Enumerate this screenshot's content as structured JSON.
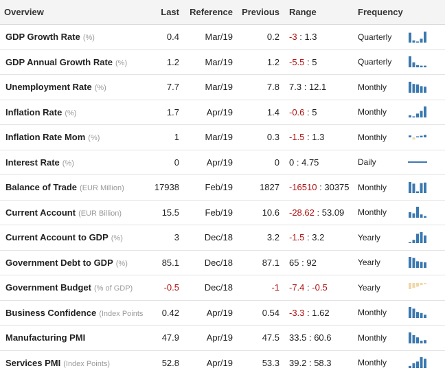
{
  "table": {
    "headers": {
      "overview": "Overview",
      "last": "Last",
      "reference": "Reference",
      "previous": "Previous",
      "range": "Range",
      "frequency": "Frequency"
    },
    "rows": [
      {
        "name": "GDP Growth Rate",
        "unit": "(%)",
        "last": "0.4",
        "last_neg": false,
        "reference": "Mar/19",
        "previous": "0.2",
        "prev_neg": false,
        "range_low": "-3",
        "low_neg": true,
        "range_sep": ":",
        "range_high": "1.3",
        "high_neg": false,
        "frequency": "Quarterly",
        "spark": {
          "color": "#3b78b0",
          "type": "bars",
          "bars": [
            0.9,
            0.2,
            0.1,
            0.35,
            1.0
          ]
        }
      },
      {
        "name": "GDP Annual Growth Rate",
        "unit": "(%)",
        "last": "1.2",
        "last_neg": false,
        "reference": "Mar/19",
        "previous": "1.2",
        "prev_neg": false,
        "range_low": "-5.5",
        "low_neg": true,
        "range_sep": ":",
        "range_high": "5",
        "high_neg": false,
        "frequency": "Quarterly",
        "spark": {
          "color": "#3b78b0",
          "type": "bars",
          "bars": [
            1.0,
            0.45,
            0.2,
            0.15,
            0.15
          ]
        }
      },
      {
        "name": "Unemployment Rate",
        "unit": "(%)",
        "last": "7.7",
        "last_neg": false,
        "reference": "Mar/19",
        "previous": "7.8",
        "prev_neg": false,
        "range_low": "7.3",
        "low_neg": false,
        "range_sep": ":",
        "range_high": "12.1",
        "high_neg": false,
        "frequency": "Monthly",
        "spark": {
          "color": "#3b78b0",
          "type": "bars",
          "bars": [
            1.0,
            0.8,
            0.75,
            0.6,
            0.55
          ]
        }
      },
      {
        "name": "Inflation Rate",
        "unit": "(%)",
        "last": "1.7",
        "last_neg": false,
        "reference": "Apr/19",
        "previous": "1.4",
        "prev_neg": false,
        "range_low": "-0.6",
        "low_neg": true,
        "range_sep": ":",
        "range_high": "5",
        "high_neg": false,
        "frequency": "Monthly",
        "spark": {
          "color": "#3b78b0",
          "type": "bars",
          "bars": [
            0.2,
            0.1,
            0.35,
            0.6,
            1.0
          ]
        }
      },
      {
        "name": "Inflation Rate Mom",
        "unit": "(%)",
        "last": "1",
        "last_neg": false,
        "reference": "Mar/19",
        "previous": "0.3",
        "prev_neg": false,
        "range_low": "-1.5",
        "low_neg": true,
        "range_sep": ":",
        "range_high": "1.3",
        "high_neg": false,
        "frequency": "Monthly",
        "spark": {
          "color": "#3b78b0",
          "type": "mixed",
          "bars": [
            0.35,
            -0.2,
            0.15,
            0.3,
            0.45
          ]
        }
      },
      {
        "name": "Interest Rate",
        "unit": "(%)",
        "last": "0",
        "last_neg": false,
        "reference": "Apr/19",
        "previous": "0",
        "prev_neg": false,
        "range_low": "0",
        "low_neg": false,
        "range_sep": ":",
        "range_high": "4.75",
        "high_neg": false,
        "frequency": "Daily",
        "spark": {
          "color": "#3b78b0",
          "type": "line",
          "bars": []
        }
      },
      {
        "name": "Balance of Trade",
        "unit": "(EUR Million)",
        "last": "17938",
        "last_neg": false,
        "reference": "Feb/19",
        "previous": "1827",
        "prev_neg": false,
        "range_low": "-16510",
        "low_neg": true,
        "range_sep": ":",
        "range_high": "30375",
        "high_neg": false,
        "frequency": "Monthly",
        "spark": {
          "color": "#3b78b0",
          "type": "bars",
          "bars": [
            1.0,
            0.85,
            0.15,
            0.9,
            0.95
          ]
        }
      },
      {
        "name": "Current Account",
        "unit": "(EUR Billion)",
        "last": "15.5",
        "last_neg": false,
        "reference": "Feb/19",
        "previous": "10.6",
        "prev_neg": false,
        "range_low": "-28.62",
        "low_neg": true,
        "range_sep": ":",
        "range_high": "53.09",
        "high_neg": false,
        "frequency": "Monthly",
        "spark": {
          "color": "#3b78b0",
          "type": "bars",
          "bars": [
            0.5,
            0.4,
            1.0,
            0.3,
            0.15
          ]
        }
      },
      {
        "name": "Current Account to GDP",
        "unit": "(%)",
        "last": "3",
        "last_neg": false,
        "reference": "Dec/18",
        "previous": "3.2",
        "prev_neg": false,
        "range_low": "-1.5",
        "low_neg": true,
        "range_sep": ":",
        "range_high": "3.2",
        "high_neg": false,
        "frequency": "Yearly",
        "spark": {
          "color": "#3b78b0",
          "type": "bars",
          "bars": [
            0.1,
            0.3,
            0.85,
            1.0,
            0.7
          ]
        }
      },
      {
        "name": "Government Debt to GDP",
        "unit": "(%)",
        "last": "85.1",
        "last_neg": false,
        "reference": "Dec/18",
        "previous": "87.1",
        "prev_neg": false,
        "range_low": "65",
        "low_neg": false,
        "range_sep": ":",
        "range_high": "92",
        "high_neg": false,
        "frequency": "Yearly",
        "spark": {
          "color": "#3b78b0",
          "type": "bars",
          "bars": [
            1.0,
            0.9,
            0.6,
            0.55,
            0.5
          ]
        }
      },
      {
        "name": "Government Budget",
        "unit": "(% of GDP)",
        "last": "-0.5",
        "last_neg": true,
        "reference": "Dec/18",
        "previous": "-1",
        "prev_neg": true,
        "range_low": "-7.4",
        "low_neg": true,
        "range_sep": ":",
        "range_high": "-0.5",
        "high_neg": true,
        "frequency": "Yearly",
        "spark": {
          "color": "#f2d7a6",
          "type": "neg",
          "bars": [
            1.0,
            0.8,
            0.6,
            0.35,
            0.2
          ]
        }
      },
      {
        "name": "Business Confidence",
        "unit": "(Index Points)",
        "last": "0.42",
        "last_neg": false,
        "reference": "Apr/19",
        "previous": "0.54",
        "prev_neg": false,
        "range_low": "-3.3",
        "low_neg": true,
        "range_sep": ":",
        "range_high": "1.62",
        "high_neg": false,
        "frequency": "Monthly",
        "spark": {
          "color": "#3b78b0",
          "type": "bars",
          "bars": [
            1.0,
            0.85,
            0.55,
            0.45,
            0.3
          ]
        }
      },
      {
        "name": "Manufacturing PMI",
        "unit": "",
        "last": "47.9",
        "last_neg": false,
        "reference": "Apr/19",
        "previous": "47.5",
        "prev_neg": false,
        "range_low": "33.5",
        "low_neg": false,
        "range_sep": ":",
        "range_high": "60.6",
        "high_neg": false,
        "frequency": "Monthly",
        "spark": {
          "color": "#3b78b0",
          "type": "bars",
          "bars": [
            1.0,
            0.75,
            0.55,
            0.25,
            0.3
          ]
        }
      },
      {
        "name": "Services PMI",
        "unit": "(Index Points)",
        "last": "52.8",
        "last_neg": false,
        "reference": "Apr/19",
        "previous": "53.3",
        "prev_neg": false,
        "range_low": "39.2",
        "low_neg": false,
        "range_sep": ":",
        "range_high": "58.3",
        "high_neg": false,
        "frequency": "Monthly",
        "spark": {
          "color": "#3b78b0",
          "type": "bars",
          "bars": [
            0.2,
            0.45,
            0.6,
            1.0,
            0.85
          ]
        }
      }
    ]
  }
}
